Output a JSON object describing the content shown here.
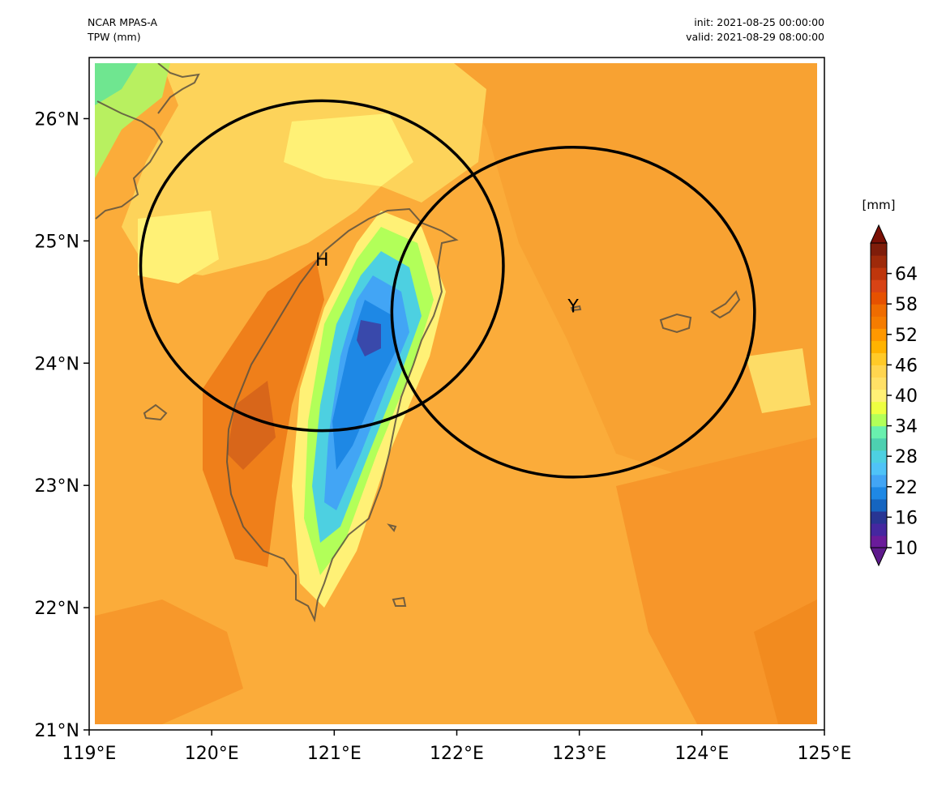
{
  "header": {
    "model": "NCAR MPAS-A",
    "field": "TPW (mm)",
    "init": "init: 2021-08-25 00:00:00",
    "valid": "valid: 2021-08-29 08:00:00"
  },
  "map": {
    "lon_range": [
      119,
      125
    ],
    "lat_range": [
      21,
      26.5
    ],
    "lon_ticks": [
      "119°E",
      "120°E",
      "121°E",
      "122°E",
      "123°E",
      "124°E",
      "125°E"
    ],
    "lat_ticks": [
      "21°N",
      "22°N",
      "23°N",
      "24°N",
      "25°N",
      "26°N"
    ],
    "field_variable": "total precipitable water",
    "coastline_color": "#5a5040"
  },
  "markers": [
    {
      "label": "H",
      "lon": 120.9,
      "lat": 24.85,
      "circle_radius_deg_lon": 1.48
    },
    {
      "label": "Y",
      "lon": 122.95,
      "lat": 24.47,
      "circle_radius_deg_lon": 1.48
    }
  ],
  "colorbar": {
    "unit": "[mm]",
    "min": 10,
    "max": 70,
    "ticks": [
      "10",
      "16",
      "22",
      "28",
      "34",
      "40",
      "46",
      "52",
      "58",
      "64"
    ],
    "extend": "both",
    "colors": [
      "#6a1b9a",
      "#4527a0",
      "#283593",
      "#1565c0",
      "#1e88e5",
      "#42a5f5",
      "#4fc3f7",
      "#4dd0e1",
      "#4dd0b0",
      "#69f0ae",
      "#b2ff59",
      "#eeff41",
      "#fff176",
      "#ffe066",
      "#ffd54f",
      "#ffca28",
      "#ffb300",
      "#ff9800",
      "#f57c00",
      "#ef6c00",
      "#e65100",
      "#d84315",
      "#bf360c",
      "#9e2a0a",
      "#7f1d0a"
    ],
    "over_color": "#7a1005",
    "under_color": "#5e1a8c"
  }
}
